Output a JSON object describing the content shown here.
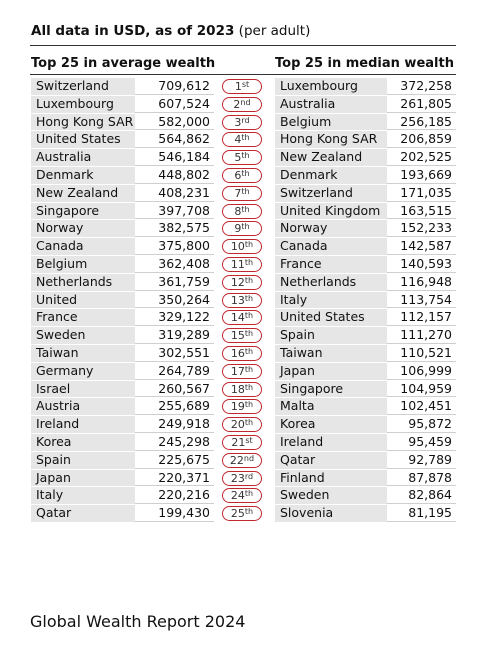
{
  "header": {
    "title": "All data in USD, as of 2023",
    "note": "(per adult)"
  },
  "average": {
    "heading": "Top 25 in average wealth",
    "rows": [
      [
        "Switzerland",
        "709,612"
      ],
      [
        "Luxembourg",
        "607,524"
      ],
      [
        "Hong Kong SAR",
        "582,000"
      ],
      [
        "United States",
        "564,862"
      ],
      [
        "Australia",
        "546,184"
      ],
      [
        "Denmark",
        "448,802"
      ],
      [
        "New Zealand",
        "408,231"
      ],
      [
        "Singapore",
        "397,708"
      ],
      [
        "Norway",
        "382,575"
      ],
      [
        "Canada",
        "375,800"
      ],
      [
        "Belgium",
        "362,408"
      ],
      [
        "Netherlands",
        "361,759"
      ],
      [
        "United Kingdom",
        "350,264"
      ],
      [
        "France",
        "329,122"
      ],
      [
        "Sweden",
        "319,289"
      ],
      [
        "Taiwan",
        "302,551"
      ],
      [
        "Germany",
        "264,789"
      ],
      [
        "Israel",
        "260,567"
      ],
      [
        "Austria",
        "255,689"
      ],
      [
        "Ireland",
        "249,918"
      ],
      [
        "Korea",
        "245,298"
      ],
      [
        "Spain",
        "225,675"
      ],
      [
        "Japan",
        "220,371"
      ],
      [
        "Italy",
        "220,216"
      ],
      [
        "Qatar",
        "199,430"
      ]
    ]
  },
  "ranks": [
    [
      "1",
      "st"
    ],
    [
      "2",
      "nd"
    ],
    [
      "3",
      "rd"
    ],
    [
      "4",
      "th"
    ],
    [
      "5",
      "th"
    ],
    [
      "6",
      "th"
    ],
    [
      "7",
      "th"
    ],
    [
      "8",
      "th"
    ],
    [
      "9",
      "th"
    ],
    [
      "10",
      "th"
    ],
    [
      "11",
      "th"
    ],
    [
      "12",
      "th"
    ],
    [
      "13",
      "th"
    ],
    [
      "14",
      "th"
    ],
    [
      "15",
      "th"
    ],
    [
      "16",
      "th"
    ],
    [
      "17",
      "th"
    ],
    [
      "18",
      "th"
    ],
    [
      "19",
      "th"
    ],
    [
      "20",
      "th"
    ],
    [
      "21",
      "st"
    ],
    [
      "22",
      "nd"
    ],
    [
      "23",
      "rd"
    ],
    [
      "24",
      "th"
    ],
    [
      "25",
      "th"
    ]
  ],
  "median": {
    "heading": "Top 25 in median wealth",
    "rows": [
      [
        "Luxembourg",
        "372,258"
      ],
      [
        "Australia",
        "261,805"
      ],
      [
        "Belgium",
        "256,185"
      ],
      [
        "Hong Kong SAR",
        "206,859"
      ],
      [
        "New Zealand",
        "202,525"
      ],
      [
        "Denmark",
        "193,669"
      ],
      [
        "Switzerland",
        "171,035"
      ],
      [
        "United Kingdom",
        "163,515"
      ],
      [
        "Norway",
        "152,233"
      ],
      [
        "Canada",
        "142,587"
      ],
      [
        "France",
        "140,593"
      ],
      [
        "Netherlands",
        "116,948"
      ],
      [
        "Italy",
        "113,754"
      ],
      [
        "United States",
        "112,157"
      ],
      [
        "Spain",
        "111,270"
      ],
      [
        "Taiwan",
        "110,521"
      ],
      [
        "Japan",
        "106,999"
      ],
      [
        "Singapore",
        "104,959"
      ],
      [
        "Malta",
        "102,451"
      ],
      [
        "Korea",
        "95,872"
      ],
      [
        "Ireland",
        "95,459"
      ],
      [
        "Qatar",
        "92,789"
      ],
      [
        "Finland",
        "87,878"
      ],
      [
        "Sweden",
        "82,864"
      ],
      [
        "Slovenia",
        "81,195"
      ]
    ]
  },
  "footer": "Global Wealth Report 2024"
}
